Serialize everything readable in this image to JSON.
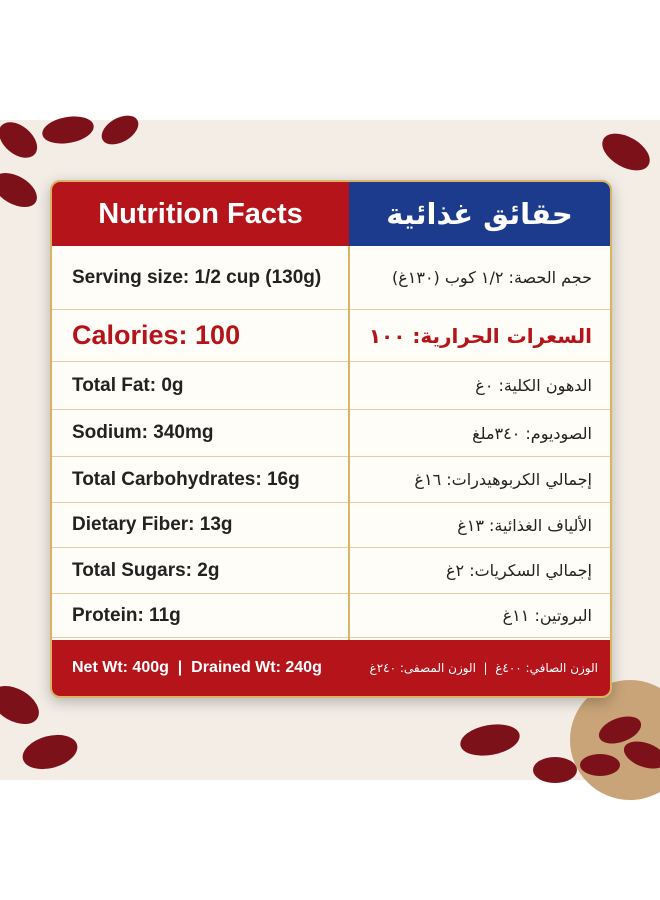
{
  "header": {
    "en": "Nutrition Facts",
    "ar": "حقائق غذائية"
  },
  "rows": [
    {
      "en": "Serving size: 1/2 cup (130g)",
      "ar": "حجم الحصة: ١/٢ كوب (١٣٠غ)"
    },
    {
      "en": "Calories: 100",
      "ar": "السعرات الحرارية: ١٠٠"
    },
    {
      "en": "Total Fat: 0g",
      "ar": "الدهون الكلية: ٠غ"
    },
    {
      "en": "Sodium: 340mg",
      "ar": "الصوديوم: ٣٤٠ملغ"
    },
    {
      "en": "Total Carbohydrates: 16g",
      "ar": "إجمالي الكربوهيدرات: ١٦غ"
    },
    {
      "en": "Dietary Fiber: 13g",
      "ar": "الألياف الغذائية: ١٣غ"
    },
    {
      "en": "Total Sugars: 2g",
      "ar": "إجمالي السكريات: ٢غ"
    },
    {
      "en": "Protein: 11g",
      "ar": "البروتين: ١١غ"
    }
  ],
  "footer": {
    "en": "Net Wt: 400g  |  Drained Wt: 240g",
    "ar": "الوزن الصافي: ٤٠٠غ  |  الوزن المصفى: ٢٤٠غ"
  }
}
